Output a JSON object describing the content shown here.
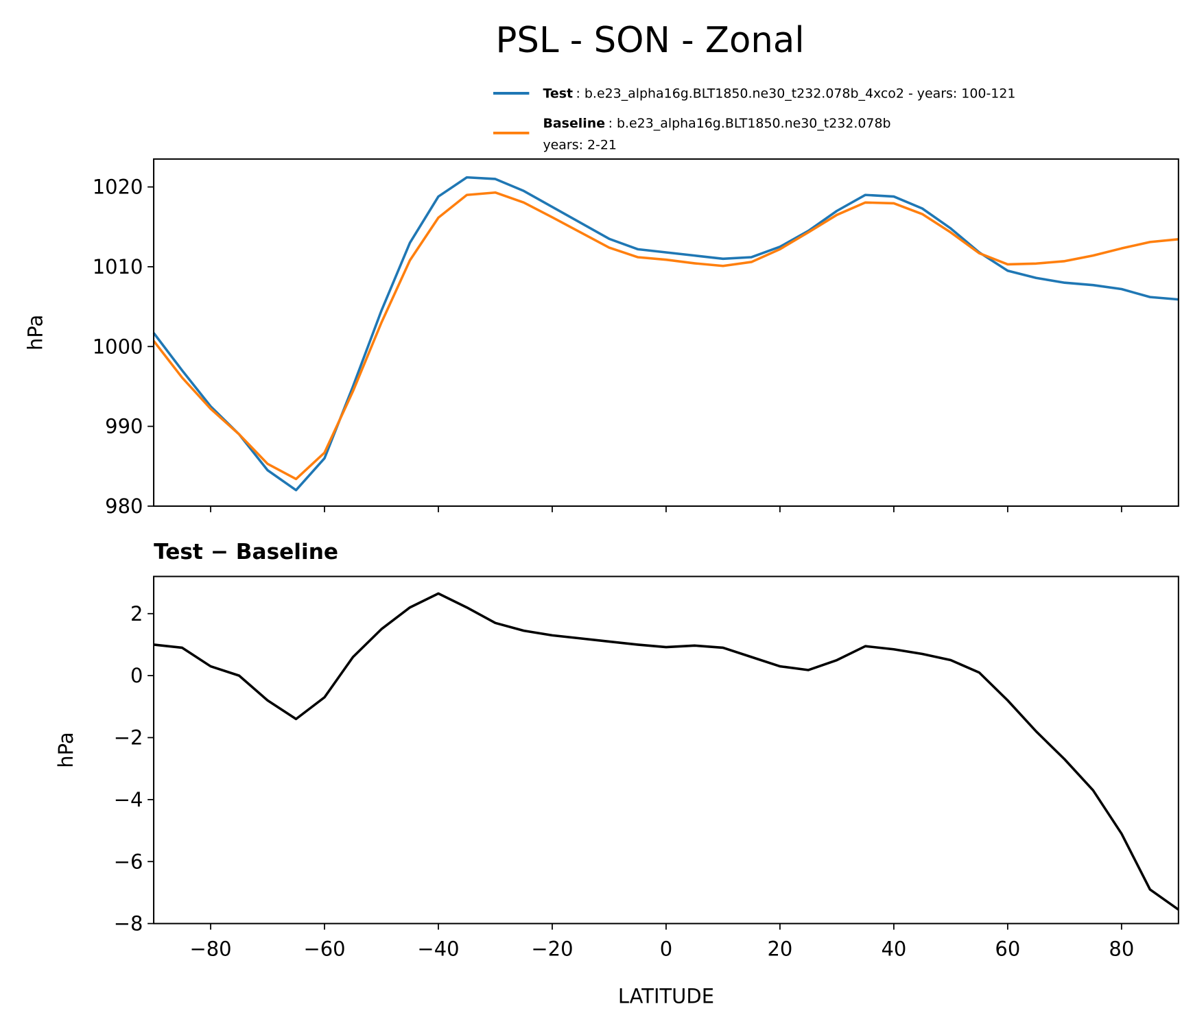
{
  "chart_data": [
    {
      "type": "line",
      "title": "PSL - SON - Zonal",
      "ylabel": "hPa",
      "x": [
        -90,
        -85,
        -80,
        -75,
        -70,
        -65,
        -60,
        -55,
        -50,
        -45,
        -40,
        -35,
        -30,
        -25,
        -20,
        -15,
        -10,
        -5,
        0,
        5,
        10,
        15,
        20,
        25,
        30,
        35,
        40,
        45,
        50,
        55,
        60,
        65,
        70,
        75,
        80,
        85,
        90
      ],
      "series": [
        {
          "name": "Test",
          "description": [
            ": b.e23_alpha16g.BLT1850.ne30_t232.078b_4xco2 - years: 100-121"
          ],
          "color": "#1f77b4",
          "values": [
            1001.7,
            997,
            992.5,
            989,
            984.5,
            982,
            986,
            995,
            1004.5,
            1013,
            1018.8,
            1021.2,
            1021,
            1019.5,
            1017.5,
            1015.5,
            1013.5,
            1012.2,
            1011.8,
            1011.4,
            1011,
            1011.2,
            1012.5,
            1014.5,
            1017,
            1019,
            1018.8,
            1017.3,
            1014.8,
            1011.8,
            1009.5,
            1008.6,
            1008,
            1007.7,
            1007.2,
            1006.2,
            1005.9
          ]
        },
        {
          "name": "Baseline",
          "description": [
            ": b.e23_alpha16g.BLT1850.ne30_t232.078b",
            "years: 2-21"
          ],
          "color": "#ff7f0e",
          "values": [
            1000.7,
            996.1,
            992.2,
            989,
            985.3,
            983.4,
            986.7,
            994.4,
            1003,
            1010.8,
            1016.15,
            1019,
            1019.3,
            1018.05,
            1016.2,
            1014.3,
            1012.4,
            1011.2,
            1010.88,
            1010.43,
            1010.1,
            1010.6,
            1012.2,
            1014.32,
            1016.5,
            1018.05,
            1017.95,
            1016.6,
            1014.3,
            1011.7,
            1010.3,
            1010.4,
            1010.7,
            1011.4,
            1012.3,
            1013.1,
            1013.45
          ]
        }
      ],
      "xlim": [
        -90,
        90
      ],
      "xticks": [
        -80,
        -60,
        -40,
        -20,
        0,
        20,
        40,
        60,
        80
      ],
      "xticklabels": false,
      "ylim": [
        980,
        1023.5
      ],
      "yticks": [
        980,
        990,
        1000,
        1010,
        1020
      ],
      "legend": "top"
    },
    {
      "type": "line",
      "title": "Test − Baseline",
      "ylabel": "hPa",
      "xlabel": "LATITUDE",
      "x": [
        -90,
        -85,
        -80,
        -75,
        -70,
        -65,
        -60,
        -55,
        -50,
        -45,
        -40,
        -35,
        -30,
        -25,
        -20,
        -15,
        -10,
        -5,
        0,
        5,
        10,
        15,
        20,
        25,
        30,
        35,
        40,
        45,
        50,
        55,
        60,
        65,
        70,
        75,
        80,
        85,
        90
      ],
      "series": [
        {
          "color": "#000000",
          "values": [
            1.0,
            0.9,
            0.3,
            0.0,
            -0.8,
            -1.4,
            -0.7,
            0.6,
            1.5,
            2.2,
            2.65,
            2.2,
            1.7,
            1.45,
            1.3,
            1.2,
            1.1,
            1.0,
            0.92,
            0.97,
            0.9,
            0.6,
            0.3,
            0.18,
            0.5,
            0.95,
            0.85,
            0.7,
            0.5,
            0.1,
            -0.8,
            -1.8,
            -2.7,
            -3.7,
            -5.1,
            -6.9,
            -7.55
          ]
        }
      ],
      "xlim": [
        -90,
        90
      ],
      "xticks": [
        {
          "value": -80,
          "label": "−80"
        },
        {
          "value": -60,
          "label": "−60"
        },
        {
          "value": -40,
          "label": "−40"
        },
        {
          "value": -20,
          "label": "−20"
        },
        0,
        20,
        40,
        60,
        80
      ],
      "xticklabels": true,
      "ylim": [
        -8,
        3.2
      ],
      "yticks": [
        {
          "value": -8,
          "label": "−8"
        },
        {
          "value": -6,
          "label": "−6"
        },
        {
          "value": -4,
          "label": "−4"
        },
        {
          "value": -2,
          "label": "−2"
        },
        0,
        2
      ]
    }
  ]
}
